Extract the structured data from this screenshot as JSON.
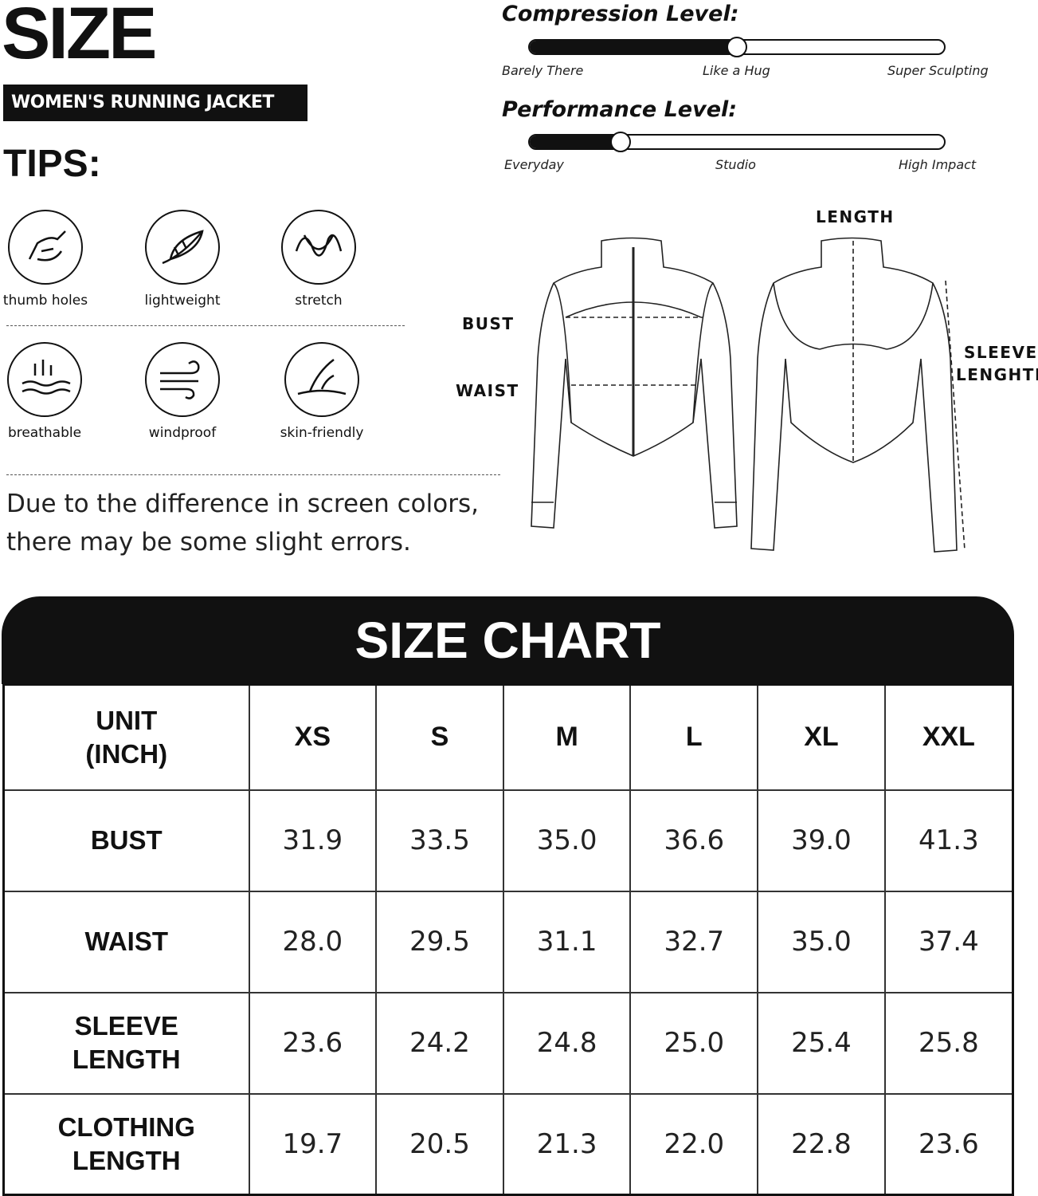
{
  "title": "SIZE",
  "subtitle": "WOMEN'S RUNNING JACKET",
  "tips_title": "TIPS:",
  "features": [
    {
      "label": "thumb holes",
      "icon": "hand-icon"
    },
    {
      "label": "lightweight",
      "icon": "feather-icon"
    },
    {
      "label": "stretch",
      "icon": "stretch-icon"
    },
    {
      "label": "breathable",
      "icon": "breathable-icon"
    },
    {
      "label": "windproof",
      "icon": "wind-icon"
    },
    {
      "label": "skin-friendly",
      "icon": "skin-icon"
    }
  ],
  "note_line1": "Due to the difference in screen colors,",
  "note_line2": "there may be some slight errors.",
  "compression": {
    "title": "Compression Level:",
    "level": 0.5,
    "ticks": [
      "Barely There",
      "Like a Hug",
      "Super Sculpting"
    ]
  },
  "performance": {
    "title": "Performance Level:",
    "level": 0.22,
    "ticks": [
      "Everyday",
      "Studio",
      "High Impact"
    ]
  },
  "diagram": {
    "bust": "BUST",
    "waist": "WAIST",
    "length": "LENGTH",
    "sleeve1": "SLEEVE",
    "sleeve2": "LENGHTH"
  },
  "chart": {
    "title": "SIZE CHART",
    "unit1": "UNIT",
    "unit2": "(INCH)",
    "sizes": [
      "XS",
      "S",
      "M",
      "L",
      "XL",
      "XXL"
    ],
    "rows": [
      {
        "l1": "BUST",
        "l2": "",
        "values": [
          "31.9",
          "33.5",
          "35.0",
          "36.6",
          "39.0",
          "41.3"
        ]
      },
      {
        "l1": "WAIST",
        "l2": "",
        "values": [
          "28.0",
          "29.5",
          "31.1",
          "32.7",
          "35.0",
          "37.4"
        ]
      },
      {
        "l1": "SLEEVE",
        "l2": "LENGTH",
        "values": [
          "23.6",
          "24.2",
          "24.8",
          "25.0",
          "25.4",
          "25.8"
        ]
      },
      {
        "l1": "CLOTHING",
        "l2": "LENGTH",
        "values": [
          "19.7",
          "20.5",
          "21.3",
          "22.0",
          "22.8",
          "23.6"
        ]
      }
    ]
  }
}
